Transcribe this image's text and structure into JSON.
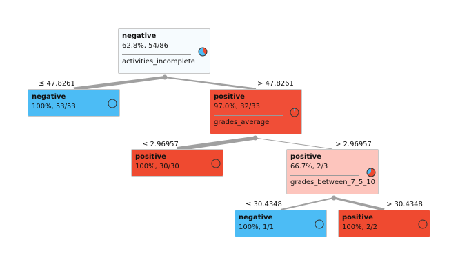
{
  "colors": {
    "negative": "#4cbcf5",
    "positive": "#ef4a30",
    "edge": "#a0a0a0",
    "node_border": "#c8c8c8"
  },
  "nodes": {
    "root": {
      "class": "negative",
      "stats": "62.8%, 54/86",
      "split": "activities_incomplete",
      "bg": "#f6fbfe",
      "pie_negative_fraction": 0.628
    },
    "left1": {
      "class": "negative",
      "stats": "100%, 53/53",
      "bg": "#4cbcf5",
      "pie_negative_fraction": 1.0
    },
    "right1": {
      "class": "positive",
      "stats": "97.0%, 32/33",
      "split": "grades_average",
      "bg": "#f04e37",
      "pie_negative_fraction": 0.03
    },
    "left2": {
      "class": "positive",
      "stats": "100%, 30/30",
      "bg": "#ef4a30",
      "pie_negative_fraction": 0.0
    },
    "right2": {
      "class": "positive",
      "stats": "66.7%, 2/3",
      "split": "grades_between_7_5_10",
      "bg": "#fdc5bd",
      "pie_negative_fraction": 0.333
    },
    "left3": {
      "class": "negative",
      "stats": "100%, 1/1",
      "bg": "#4cbcf5",
      "pie_negative_fraction": 1.0
    },
    "right3": {
      "class": "positive",
      "stats": "100%, 2/2",
      "bg": "#ef4a30",
      "pie_negative_fraction": 0.0
    }
  },
  "edges": {
    "root_left": "≤ 47.8261",
    "root_right": "> 47.8261",
    "right1_left": "≤ 2.96957",
    "right1_right": "> 2.96957",
    "right2_left": "≤ 30.4348",
    "right2_right": "> 30.4348"
  }
}
